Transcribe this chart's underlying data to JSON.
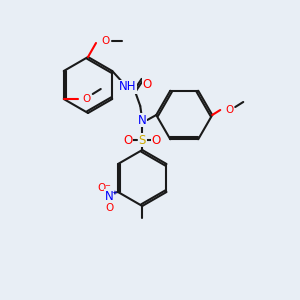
{
  "background_color": "#e8eef5",
  "bond_color": "#1a1a1a",
  "atom_colors": {
    "C": "#1a1a1a",
    "N": "#0000ff",
    "O": "#ff0000",
    "S": "#ccaa00",
    "H": "#777777"
  },
  "font_size": 7.5,
  "line_width": 1.5
}
